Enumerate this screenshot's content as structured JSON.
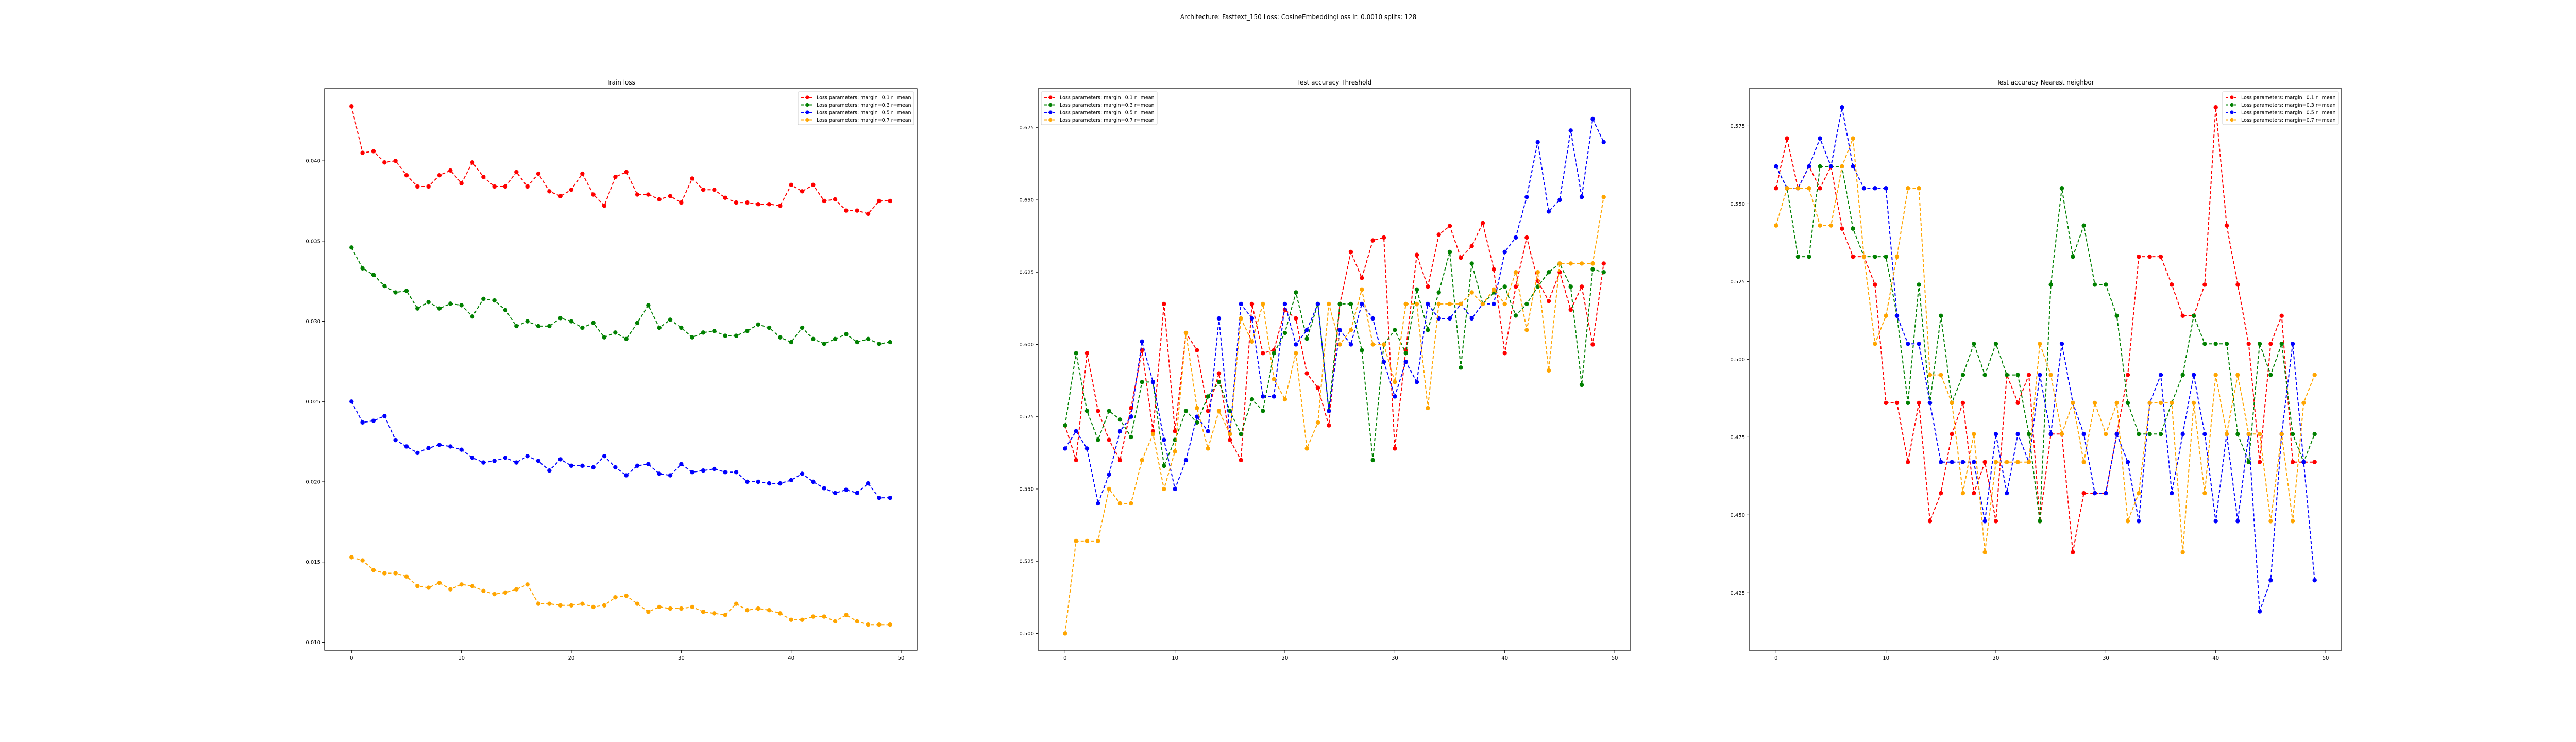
{
  "figure_title": "Architecture: Fasttext_150 Loss: CosineEmbeddingLoss lr: 0.0010 splits: 128",
  "colors": {
    "red": "#ff0000",
    "green": "#008000",
    "blue": "#0000ff",
    "orange": "#ffa500"
  },
  "chart_data": [
    {
      "type": "line",
      "title": "Train loss",
      "xlabel": "",
      "ylabel": "",
      "x": [
        0,
        1,
        2,
        3,
        4,
        5,
        6,
        7,
        8,
        9,
        10,
        11,
        12,
        13,
        14,
        15,
        16,
        17,
        18,
        19,
        20,
        21,
        22,
        23,
        24,
        25,
        26,
        27,
        28,
        29,
        30,
        31,
        32,
        33,
        34,
        35,
        36,
        37,
        38,
        39,
        40,
        41,
        42,
        43,
        44,
        45,
        46,
        47,
        48,
        49
      ],
      "xlim": [
        -2.45,
        51.45
      ],
      "ylim": [
        0.0095,
        0.0445
      ],
      "xticks": [
        0,
        10,
        20,
        30,
        40,
        50
      ],
      "yticks": [
        0.01,
        0.015,
        0.02,
        0.025,
        0.03,
        0.035,
        0.04
      ],
      "ytick_labels": [
        "0.010",
        "0.015",
        "0.020",
        "0.025",
        "0.030",
        "0.035",
        "0.040"
      ],
      "legend_loc": "upper right",
      "series": [
        {
          "name": "Loss parameters: margin=0.1 r=mean",
          "color": "#ff0000",
          "values": [
            0.0434,
            0.0405,
            0.0406,
            0.0399,
            0.04,
            0.0391,
            0.0384,
            0.0384,
            0.0391,
            0.0394,
            0.0386,
            0.0399,
            0.039,
            0.0384,
            0.0384,
            0.0393,
            0.0384,
            0.0392,
            0.0381,
            0.0378,
            0.0382,
            0.0392,
            0.0379,
            0.0372,
            0.039,
            0.0393,
            0.0379,
            0.0379,
            0.0376,
            0.0378,
            0.0374,
            0.0389,
            0.0382,
            0.0382,
            0.0377,
            0.0374,
            0.0374,
            0.0373,
            0.0373,
            0.0372,
            0.0385,
            0.0381,
            0.0385,
            0.0375,
            0.0376,
            0.0369,
            0.0369,
            0.0367,
            0.0375,
            0.0375
          ]
        },
        {
          "name": "Loss parameters: margin=0.3 r=mean",
          "color": "#008000",
          "values": [
            0.0346,
            0.0333,
            0.0329,
            0.0322,
            0.0318,
            0.0319,
            0.0308,
            0.0312,
            0.0308,
            0.0311,
            0.031,
            0.0303,
            0.0314,
            0.0313,
            0.0307,
            0.0297,
            0.03,
            0.0297,
            0.0297,
            0.0302,
            0.03,
            0.0296,
            0.0299,
            0.029,
            0.0293,
            0.0289,
            0.0299,
            0.031,
            0.0296,
            0.0301,
            0.0296,
            0.029,
            0.0293,
            0.0294,
            0.0291,
            0.0291,
            0.0294,
            0.0298,
            0.0296,
            0.029,
            0.0287,
            0.0296,
            0.0289,
            0.0286,
            0.0289,
            0.0292,
            0.0287,
            0.0289,
            0.0286,
            0.0287
          ]
        },
        {
          "name": "Loss parameters: margin=0.5 r=mean",
          "color": "#0000ff",
          "values": [
            0.025,
            0.0237,
            0.0238,
            0.0241,
            0.0226,
            0.0222,
            0.0218,
            0.0221,
            0.0223,
            0.0222,
            0.022,
            0.0215,
            0.0212,
            0.0213,
            0.0215,
            0.0212,
            0.0216,
            0.0213,
            0.0207,
            0.0214,
            0.021,
            0.021,
            0.0209,
            0.0216,
            0.0209,
            0.0204,
            0.021,
            0.0211,
            0.0205,
            0.0204,
            0.0211,
            0.0206,
            0.0207,
            0.0208,
            0.0206,
            0.0206,
            0.02,
            0.02,
            0.0199,
            0.0199,
            0.0201,
            0.0205,
            0.02,
            0.0196,
            0.0193,
            0.0195,
            0.0193,
            0.0199,
            0.019,
            0.019
          ]
        },
        {
          "name": "Loss parameters: margin=0.7 r=mean",
          "color": "#ffa500",
          "values": [
            0.0153,
            0.0151,
            0.0145,
            0.0143,
            0.0143,
            0.0141,
            0.0135,
            0.0134,
            0.0137,
            0.0133,
            0.0136,
            0.0135,
            0.0132,
            0.013,
            0.0131,
            0.0133,
            0.0136,
            0.0124,
            0.0124,
            0.0123,
            0.0123,
            0.0124,
            0.0122,
            0.0123,
            0.0128,
            0.0129,
            0.0124,
            0.0119,
            0.0122,
            0.0121,
            0.0121,
            0.0122,
            0.0119,
            0.0118,
            0.0117,
            0.0124,
            0.012,
            0.0121,
            0.012,
            0.0118,
            0.0114,
            0.0114,
            0.0116,
            0.0116,
            0.0113,
            0.0117,
            0.0113,
            0.0111,
            0.0111,
            0.0111
          ]
        }
      ]
    },
    {
      "type": "line",
      "title": "Test accuracy Threshold",
      "xlabel": "",
      "ylabel": "",
      "x": [
        0,
        1,
        2,
        3,
        4,
        5,
        6,
        7,
        8,
        9,
        10,
        11,
        12,
        13,
        14,
        15,
        16,
        17,
        18,
        19,
        20,
        21,
        22,
        23,
        24,
        25,
        26,
        27,
        28,
        29,
        30,
        31,
        32,
        33,
        34,
        35,
        36,
        37,
        38,
        39,
        40,
        41,
        42,
        43,
        44,
        45,
        46,
        47,
        48,
        49
      ],
      "xlim": [
        -2.45,
        51.45
      ],
      "ylim": [
        0.4942,
        0.6885
      ],
      "xticks": [
        0,
        10,
        20,
        30,
        40,
        50
      ],
      "yticks": [
        0.5,
        0.525,
        0.55,
        0.575,
        0.6,
        0.625,
        0.65,
        0.675
      ],
      "ytick_labels": [
        "0.500",
        "0.525",
        "0.550",
        "0.575",
        "0.600",
        "0.625",
        "0.650",
        "0.675"
      ],
      "legend_loc": "upper left",
      "series": [
        {
          "name": "Loss parameters: margin=0.1 r=mean",
          "color": "#ff0000",
          "values": [
            0.572,
            0.56,
            0.597,
            0.577,
            0.567,
            0.56,
            0.578,
            0.598,
            0.57,
            0.614,
            0.57,
            0.604,
            0.598,
            0.577,
            0.59,
            0.567,
            0.56,
            0.614,
            0.597,
            0.598,
            0.612,
            0.609,
            0.59,
            0.585,
            0.572,
            0.614,
            0.632,
            0.623,
            0.636,
            0.637,
            0.564,
            0.598,
            0.631,
            0.62,
            0.638,
            0.641,
            0.63,
            0.634,
            0.642,
            0.626,
            0.597,
            0.62,
            0.637,
            0.622,
            0.615,
            0.625,
            0.612,
            0.62,
            0.6,
            0.628
          ]
        },
        {
          "name": "Loss parameters: margin=0.3 r=mean",
          "color": "#008000",
          "values": [
            0.572,
            0.597,
            0.577,
            0.567,
            0.577,
            0.574,
            0.568,
            0.587,
            0.587,
            0.558,
            0.567,
            0.577,
            0.573,
            0.582,
            0.587,
            0.577,
            0.569,
            0.581,
            0.577,
            0.597,
            0.604,
            0.618,
            0.602,
            0.614,
            0.577,
            0.614,
            0.614,
            0.598,
            0.56,
            0.6,
            0.605,
            0.597,
            0.619,
            0.605,
            0.618,
            0.632,
            0.592,
            0.628,
            0.614,
            0.618,
            0.62,
            0.61,
            0.614,
            0.62,
            0.625,
            0.628,
            0.62,
            0.586,
            0.626,
            0.625
          ]
        },
        {
          "name": "Loss parameters: margin=0.5 r=mean",
          "color": "#0000ff",
          "values": [
            0.564,
            0.57,
            0.564,
            0.545,
            0.555,
            0.57,
            0.575,
            0.601,
            0.587,
            0.567,
            0.55,
            0.56,
            0.575,
            0.57,
            0.609,
            0.569,
            0.614,
            0.609,
            0.582,
            0.582,
            0.614,
            0.6,
            0.605,
            0.614,
            0.577,
            0.605,
            0.6,
            0.614,
            0.609,
            0.594,
            0.582,
            0.594,
            0.587,
            0.614,
            0.609,
            0.609,
            0.614,
            0.609,
            0.614,
            0.614,
            0.632,
            0.637,
            0.651,
            0.67,
            0.646,
            0.65,
            0.674,
            0.651,
            0.678,
            0.67
          ]
        },
        {
          "name": "Loss parameters: margin=0.7 r=mean",
          "color": "#ffa500",
          "values": [
            0.5,
            0.532,
            0.532,
            0.532,
            0.55,
            0.545,
            0.545,
            0.56,
            0.569,
            0.55,
            0.563,
            0.604,
            0.578,
            0.564,
            0.577,
            0.569,
            0.609,
            0.601,
            0.614,
            0.588,
            0.581,
            0.597,
            0.564,
            0.573,
            0.614,
            0.6,
            0.605,
            0.619,
            0.6,
            0.6,
            0.587,
            0.614,
            0.614,
            0.578,
            0.614,
            0.614,
            0.614,
            0.618,
            0.614,
            0.619,
            0.614,
            0.625,
            0.605,
            0.625,
            0.591,
            0.628,
            0.628,
            0.628,
            0.628,
            0.651
          ]
        }
      ]
    },
    {
      "type": "line",
      "title": "Test accuracy Nearest neighbor",
      "xlabel": "",
      "ylabel": "",
      "x": [
        0,
        1,
        2,
        3,
        4,
        5,
        6,
        7,
        8,
        9,
        10,
        11,
        12,
        13,
        14,
        15,
        16,
        17,
        18,
        19,
        20,
        21,
        22,
        23,
        24,
        25,
        26,
        27,
        28,
        29,
        30,
        31,
        32,
        33,
        34,
        35,
        36,
        37,
        38,
        39,
        40,
        41,
        42,
        43,
        44,
        45,
        46,
        47,
        48,
        49
      ],
      "xlim": [
        -2.45,
        51.45
      ],
      "ylim": [
        0.4065,
        0.587
      ],
      "xticks": [
        0,
        10,
        20,
        30,
        40,
        50
      ],
      "yticks": [
        0.425,
        0.45,
        0.475,
        0.5,
        0.525,
        0.55,
        0.575
      ],
      "ytick_labels": [
        "0.425",
        "0.450",
        "0.475",
        "0.500",
        "0.525",
        "0.550",
        "0.575"
      ],
      "legend_loc": "upper right",
      "series": [
        {
          "name": "Loss parameters: margin=0.1 r=mean",
          "color": "#ff0000",
          "values": [
            0.555,
            0.571,
            0.555,
            0.562,
            0.555,
            0.562,
            0.542,
            0.533,
            0.533,
            0.524,
            0.486,
            0.486,
            0.467,
            0.486,
            0.448,
            0.457,
            0.476,
            0.486,
            0.457,
            0.467,
            0.448,
            0.495,
            0.486,
            0.495,
            0.448,
            0.476,
            0.476,
            0.438,
            0.457,
            0.457,
            0.457,
            0.476,
            0.495,
            0.533,
            0.533,
            0.533,
            0.524,
            0.514,
            0.514,
            0.524,
            0.581,
            0.543,
            0.524,
            0.505,
            0.467,
            0.505,
            0.514,
            0.467,
            0.467,
            0.467
          ]
        },
        {
          "name": "Loss parameters: margin=0.3 r=mean",
          "color": "#008000",
          "values": [
            0.562,
            0.555,
            0.533,
            0.533,
            0.562,
            0.562,
            0.562,
            0.542,
            0.533,
            0.533,
            0.533,
            0.514,
            0.486,
            0.524,
            0.486,
            0.514,
            0.486,
            0.495,
            0.505,
            0.495,
            0.505,
            0.495,
            0.495,
            0.476,
            0.448,
            0.524,
            0.555,
            0.533,
            0.543,
            0.524,
            0.524,
            0.514,
            0.486,
            0.476,
            0.476,
            0.476,
            0.486,
            0.495,
            0.514,
            0.505,
            0.505,
            0.505,
            0.476,
            0.467,
            0.505,
            0.495,
            0.505,
            0.476,
            0.467,
            0.476
          ]
        },
        {
          "name": "Loss parameters: margin=0.5 r=mean",
          "color": "#0000ff",
          "values": [
            0.562,
            0.555,
            0.555,
            0.562,
            0.571,
            0.562,
            0.581,
            0.562,
            0.555,
            0.555,
            0.555,
            0.514,
            0.505,
            0.505,
            0.486,
            0.467,
            0.467,
            0.467,
            0.467,
            0.448,
            0.476,
            0.457,
            0.476,
            0.467,
            0.495,
            0.476,
            0.505,
            0.486,
            0.476,
            0.457,
            0.457,
            0.476,
            0.467,
            0.448,
            0.486,
            0.495,
            0.457,
            0.476,
            0.495,
            0.476,
            0.448,
            0.476,
            0.448,
            0.476,
            0.419,
            0.429,
            0.476,
            0.505,
            0.467,
            0.429
          ]
        },
        {
          "name": "Loss parameters: margin=0.7 r=mean",
          "color": "#ffa500",
          "values": [
            0.543,
            0.555,
            0.555,
            0.555,
            0.543,
            0.543,
            0.562,
            0.571,
            0.533,
            0.505,
            0.514,
            0.533,
            0.555,
            0.555,
            0.495,
            0.495,
            0.486,
            0.457,
            0.476,
            0.438,
            0.467,
            0.467,
            0.467,
            0.467,
            0.505,
            0.495,
            0.476,
            0.486,
            0.467,
            0.486,
            0.476,
            0.486,
            0.448,
            0.457,
            0.486,
            0.486,
            0.486,
            0.438,
            0.486,
            0.457,
            0.495,
            0.476,
            0.495,
            0.476,
            0.476,
            0.448,
            0.476,
            0.448,
            0.486,
            0.495
          ]
        }
      ]
    }
  ]
}
